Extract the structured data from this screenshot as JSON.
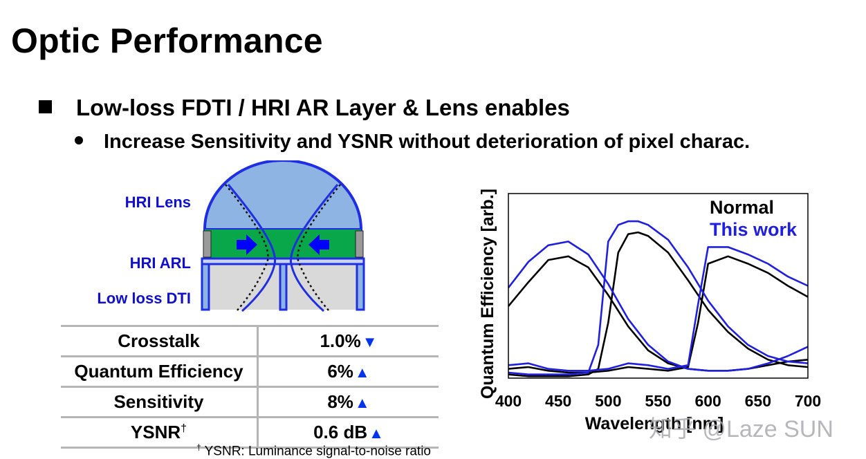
{
  "slide": {
    "title": "Optic Performance",
    "bullet_1": "Low-loss FDTI / HRI AR Layer & Lens enables",
    "bullet_2": "Increase Sensitivity and YSNR without deterioration of pixel charac."
  },
  "diagram": {
    "label_lens": "HRI Lens",
    "label_arl": "HRI ARL",
    "label_dti": "Low loss DTI",
    "colors": {
      "lens": "#8eb4e3",
      "green": "#0aa64a",
      "dti_fill": "#d9d9d9",
      "outline": "#1f2ee0",
      "arrow": "#0000ff",
      "label": "#1010cc"
    }
  },
  "table": {
    "rows": [
      {
        "metric": "Crosstalk",
        "value": "1.0%",
        "arrow": "▼"
      },
      {
        "metric": "Quantum Efficiency",
        "value": "6%",
        "arrow": "▲"
      },
      {
        "metric": "Sensitivity",
        "value": "8%",
        "arrow": "▲"
      },
      {
        "metric": "YSNR",
        "sup": "†",
        "value": "0.6 dB",
        "arrow": "▲"
      }
    ],
    "footnote_mark": "†",
    "footnote": "YSNR: Luminance signal-to-noise ratio"
  },
  "chart_data": {
    "type": "line",
    "title": "",
    "xlabel": "Wavelength [nm]",
    "ylabel": "Quantum Efficiency [arb.]",
    "xlim": [
      400,
      700
    ],
    "ylim": [
      0,
      1
    ],
    "xticks": [
      400,
      450,
      500,
      550,
      600,
      650,
      700
    ],
    "grid": false,
    "legend": {
      "position": "top-right",
      "entries": [
        {
          "name": "Normal",
          "color": "#000000"
        },
        {
          "name": "This work",
          "color": "#1f1fdd"
        }
      ]
    },
    "series": [
      {
        "name": "Normal",
        "channel": "blue",
        "color": "#000000",
        "x": [
          400,
          420,
          440,
          460,
          480,
          500,
          520,
          540,
          560,
          580,
          600,
          620,
          640,
          660,
          680,
          700
        ],
        "y": [
          0.39,
          0.52,
          0.64,
          0.66,
          0.6,
          0.45,
          0.28,
          0.15,
          0.08,
          0.05,
          0.04,
          0.04,
          0.05,
          0.07,
          0.09,
          0.1
        ]
      },
      {
        "name": "Normal",
        "channel": "green",
        "color": "#000000",
        "x": [
          400,
          420,
          440,
          460,
          480,
          490,
          500,
          510,
          520,
          530,
          540,
          560,
          580,
          600,
          620,
          640,
          660,
          680,
          700
        ],
        "y": [
          0.02,
          0.01,
          0.01,
          0.01,
          0.02,
          0.05,
          0.3,
          0.68,
          0.78,
          0.79,
          0.77,
          0.68,
          0.53,
          0.37,
          0.25,
          0.16,
          0.1,
          0.07,
          0.06
        ]
      },
      {
        "name": "Normal",
        "channel": "red",
        "color": "#000000",
        "x": [
          400,
          420,
          440,
          460,
          480,
          500,
          520,
          540,
          560,
          580,
          590,
          600,
          620,
          640,
          660,
          680,
          700
        ],
        "y": [
          0.05,
          0.06,
          0.04,
          0.03,
          0.03,
          0.04,
          0.06,
          0.05,
          0.04,
          0.06,
          0.3,
          0.62,
          0.66,
          0.62,
          0.57,
          0.5,
          0.44
        ]
      },
      {
        "name": "This work",
        "channel": "blue",
        "color": "#1f1fdd",
        "x": [
          400,
          420,
          440,
          460,
          480,
          500,
          520,
          540,
          560,
          580,
          600,
          620,
          640,
          660,
          680,
          700
        ],
        "y": [
          0.49,
          0.63,
          0.72,
          0.74,
          0.67,
          0.51,
          0.32,
          0.18,
          0.09,
          0.05,
          0.04,
          0.04,
          0.05,
          0.08,
          0.12,
          0.17
        ]
      },
      {
        "name": "This work",
        "channel": "green",
        "color": "#1f1fdd",
        "x": [
          400,
          420,
          440,
          460,
          480,
          490,
          500,
          510,
          520,
          530,
          540,
          560,
          580,
          600,
          620,
          640,
          660,
          680,
          700
        ],
        "y": [
          0.03,
          0.02,
          0.02,
          0.02,
          0.03,
          0.18,
          0.74,
          0.83,
          0.85,
          0.85,
          0.83,
          0.75,
          0.6,
          0.42,
          0.28,
          0.18,
          0.12,
          0.09,
          0.08
        ]
      },
      {
        "name": "This work",
        "channel": "red",
        "color": "#1f1fdd",
        "x": [
          400,
          420,
          440,
          460,
          480,
          500,
          520,
          540,
          560,
          580,
          590,
          600,
          620,
          640,
          660,
          680,
          700
        ],
        "y": [
          0.07,
          0.08,
          0.05,
          0.04,
          0.04,
          0.05,
          0.08,
          0.07,
          0.05,
          0.07,
          0.4,
          0.71,
          0.71,
          0.67,
          0.62,
          0.55,
          0.5
        ]
      }
    ]
  },
  "watermark": "知乎 @Laze SUN"
}
